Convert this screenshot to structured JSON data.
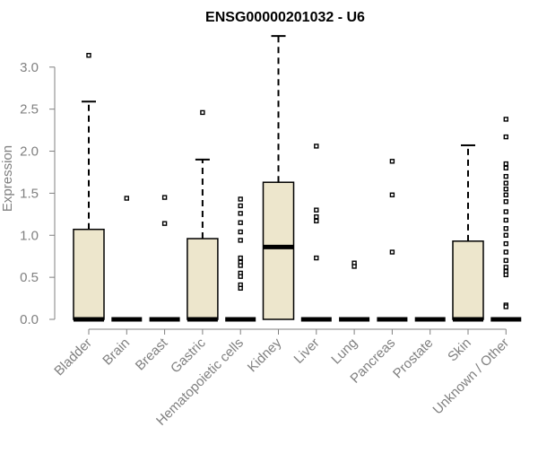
{
  "chart_data": {
    "type": "boxplot",
    "title": "ENSG00000201032 - U6",
    "xlabel": "",
    "ylabel": "Expression",
    "ylim": [
      0,
      3.35
    ],
    "yticks": [
      0.0,
      0.5,
      1.0,
      1.5,
      2.0,
      2.5,
      3.0
    ],
    "ytick_labels": [
      "0.0",
      "0.5",
      "1.0",
      "1.5",
      "2.0",
      "2.5",
      "3.0"
    ],
    "grid": false,
    "legend": "none",
    "colors": {
      "box_fill": "#ede6cc",
      "stroke": "#000000",
      "axis": "#808080",
      "text": "#808080",
      "title": "#000000"
    },
    "categories": [
      "Bladder",
      "Brain",
      "Breast",
      "Gastric",
      "Hematopoietic cells",
      "Kidney",
      "Liver",
      "Lung",
      "Pancreas",
      "Prostate",
      "Skin",
      "Unknown / Other"
    ],
    "boxes": [
      {
        "category": "Bladder",
        "min": 0,
        "q1": 0,
        "median": 0,
        "q3": 1.07,
        "max": 2.59,
        "outliers": [
          3.14
        ]
      },
      {
        "category": "Brain",
        "min": 0,
        "q1": 0,
        "median": 0,
        "q3": 0,
        "max": 0,
        "outliers": [
          1.44
        ]
      },
      {
        "category": "Breast",
        "min": 0,
        "q1": 0,
        "median": 0,
        "q3": 0,
        "max": 0,
        "outliers": [
          1.45,
          1.14
        ]
      },
      {
        "category": "Gastric",
        "min": 0,
        "q1": 0,
        "median": 0,
        "q3": 0.96,
        "max": 1.9,
        "outliers": [
          2.46
        ]
      },
      {
        "category": "Hematopoietic cells",
        "min": 0,
        "q1": 0,
        "median": 0,
        "q3": 0,
        "max": 0,
        "outliers": [
          1.43,
          1.35,
          1.26,
          1.15,
          1.04,
          0.94,
          0.73,
          0.68,
          0.64,
          0.55,
          0.51,
          0.41,
          0.37
        ]
      },
      {
        "category": "Kidney",
        "min": 0,
        "q1": 0,
        "median": 0.86,
        "q3": 1.63,
        "max": 3.37,
        "outliers": []
      },
      {
        "category": "Liver",
        "min": 0,
        "q1": 0,
        "median": 0,
        "q3": 0,
        "max": 0,
        "outliers": [
          2.06,
          1.3,
          1.22,
          1.17,
          0.73
        ]
      },
      {
        "category": "Lung",
        "min": 0,
        "q1": 0,
        "median": 0,
        "q3": 0,
        "max": 0,
        "outliers": [
          0.67,
          0.63
        ]
      },
      {
        "category": "Pancreas",
        "min": 0,
        "q1": 0,
        "median": 0,
        "q3": 0,
        "max": 0,
        "outliers": [
          1.88,
          1.48,
          0.8
        ]
      },
      {
        "category": "Prostate",
        "min": 0,
        "q1": 0,
        "median": 0,
        "q3": 0,
        "max": 0,
        "outliers": []
      },
      {
        "category": "Skin",
        "min": 0,
        "q1": 0,
        "median": 0,
        "q3": 0.93,
        "max": 2.07,
        "outliers": []
      },
      {
        "category": "Unknown / Other",
        "min": 0,
        "q1": 0,
        "median": 0,
        "q3": 0,
        "max": 0,
        "outliers": [
          2.38,
          2.17,
          1.85,
          1.8,
          1.7,
          1.62,
          1.55,
          1.48,
          1.4,
          1.28,
          1.18,
          1.08,
          1.0,
          0.9,
          0.8,
          0.7,
          0.62,
          0.57,
          0.53,
          0.17,
          0.15
        ]
      }
    ]
  }
}
